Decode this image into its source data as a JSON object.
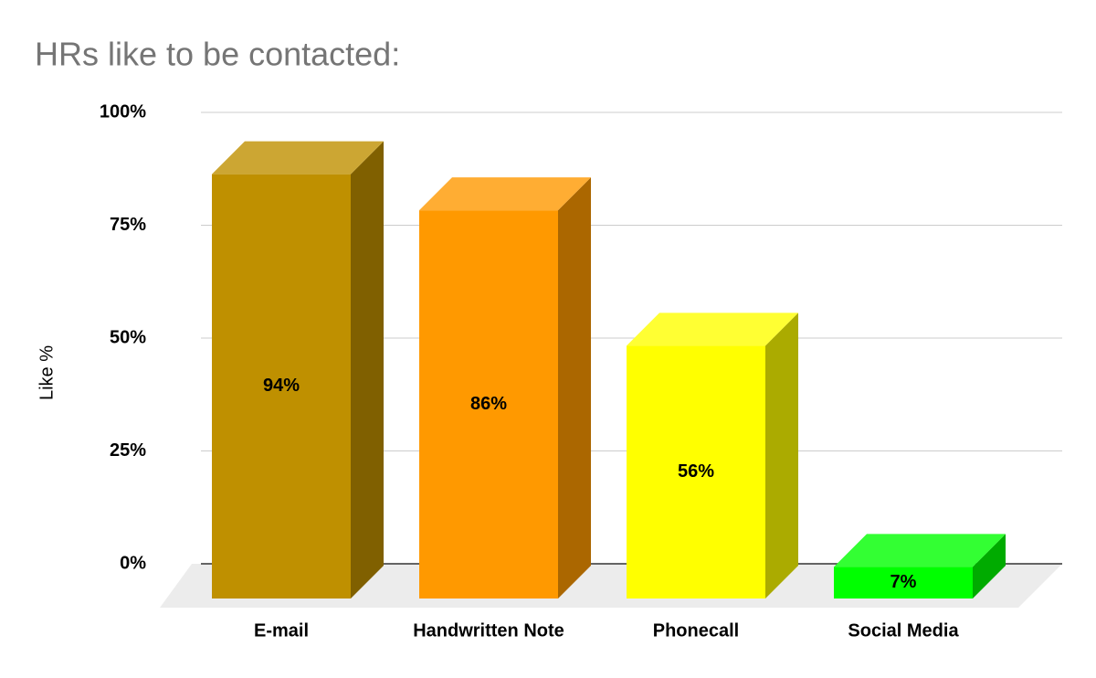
{
  "chart_data": {
    "type": "bar3d",
    "title": "HRs like to be contacted:",
    "y_label": "Like %",
    "categories": [
      "E-mail",
      "Handwritten Note",
      "Phonecall",
      "Social Media"
    ],
    "values": [
      94,
      86,
      56,
      7
    ],
    "value_labels": [
      "94%",
      "86%",
      "56%",
      "7%"
    ],
    "colors": [
      "#bf9000",
      "#ff9900",
      "#ffff00",
      "#00ff00"
    ],
    "ylim": [
      0,
      100
    ],
    "yticks": [
      {
        "value": 0,
        "label": "0%"
      },
      {
        "value": 25,
        "label": "25%"
      },
      {
        "value": 50,
        "label": "50%"
      },
      {
        "value": 75,
        "label": "75%"
      },
      {
        "value": 100,
        "label": "100%"
      }
    ],
    "grid": true
  }
}
